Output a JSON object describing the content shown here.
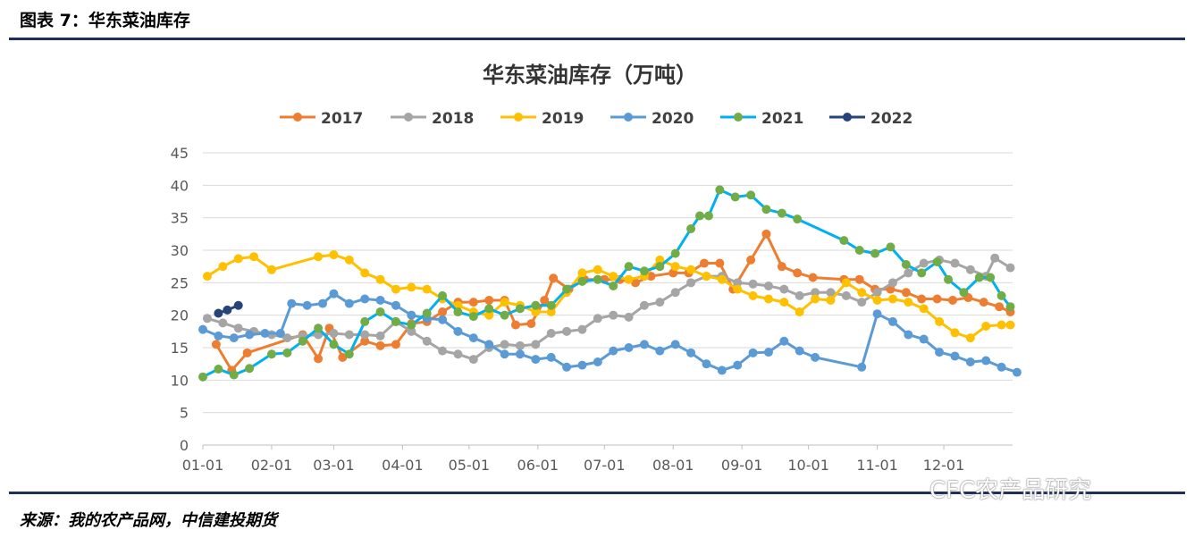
{
  "header": {
    "figure_label": "图表 7：华东菜油库存"
  },
  "footer": {
    "source": "来源：我的农产品网，中信建投期货",
    "watermark": "CFC农产品研究"
  },
  "chart_data": {
    "type": "line",
    "title": "华东菜油库存（万吨）",
    "xlabel": "",
    "ylabel": "",
    "ylim": [
      0,
      45
    ],
    "yticks": [
      0,
      5,
      10,
      15,
      20,
      25,
      30,
      35,
      40,
      45
    ],
    "xticks": [
      "01-01",
      "02-01",
      "03-01",
      "04-01",
      "05-01",
      "06-01",
      "07-01",
      "08-01",
      "09-01",
      "10-01",
      "11-01",
      "12-01"
    ],
    "grid": true,
    "legend": "top",
    "series": [
      {
        "name": "2017",
        "color": "#ED7D31",
        "marker": "#ED7D31",
        "points": [
          [
            "01-07",
            15.5
          ],
          [
            "01-14",
            11.5
          ],
          [
            "01-21",
            14.2
          ],
          [
            "02-15",
            17
          ],
          [
            "02-22",
            13.3
          ],
          [
            "02-27",
            18
          ],
          [
            "03-05",
            13.5
          ],
          [
            "03-15",
            16
          ],
          [
            "03-22",
            15.3
          ],
          [
            "03-29",
            15.5
          ],
          [
            "04-05",
            18.7
          ],
          [
            "04-12",
            19
          ],
          [
            "04-19",
            20.5
          ],
          [
            "04-26",
            22
          ],
          [
            "05-03",
            22
          ],
          [
            "05-10",
            22.3
          ],
          [
            "05-17",
            22.3
          ],
          [
            "05-22",
            18.5
          ],
          [
            "05-29",
            18.7
          ],
          [
            "06-04",
            22.3
          ],
          [
            "06-08",
            25.7
          ],
          [
            "06-15",
            24
          ],
          [
            "06-22",
            25.5
          ],
          [
            "07-01",
            25.5
          ],
          [
            "07-08",
            25.5
          ],
          [
            "07-15",
            25
          ],
          [
            "07-22",
            26
          ],
          [
            "08-01",
            26.5
          ],
          [
            "08-08",
            26.5
          ],
          [
            "08-15",
            28
          ],
          [
            "08-22",
            28
          ],
          [
            "08-28",
            24
          ],
          [
            "09-05",
            28.5
          ],
          [
            "09-12",
            32.5
          ],
          [
            "09-19",
            27.5
          ],
          [
            "09-26",
            26.5
          ],
          [
            "10-03",
            25.8
          ],
          [
            "10-17",
            25.5
          ],
          [
            "10-24",
            25.5
          ],
          [
            "10-31",
            24
          ],
          [
            "11-07",
            24
          ],
          [
            "11-14",
            23.5
          ],
          [
            "11-21",
            22.5
          ],
          [
            "11-28",
            22.5
          ],
          [
            "12-05",
            22.3
          ],
          [
            "12-12",
            22.7
          ],
          [
            "12-19",
            22
          ],
          [
            "12-26",
            21.3
          ],
          [
            "12-31",
            20.5
          ]
        ]
      },
      {
        "name": "2018",
        "color": "#A5A5A5",
        "marker": "#A5A5A5",
        "points": [
          [
            "01-03",
            19.5
          ],
          [
            "01-10",
            18.8
          ],
          [
            "01-17",
            18
          ],
          [
            "01-24",
            17.5
          ],
          [
            "02-01",
            17
          ],
          [
            "02-08",
            16.5
          ],
          [
            "02-15",
            16.8
          ],
          [
            "02-22",
            17
          ],
          [
            "03-01",
            17.2
          ],
          [
            "03-08",
            17
          ],
          [
            "03-15",
            17
          ],
          [
            "03-22",
            16.8
          ],
          [
            "03-29",
            19
          ],
          [
            "04-05",
            17.5
          ],
          [
            "04-12",
            16
          ],
          [
            "04-19",
            14.5
          ],
          [
            "04-26",
            14
          ],
          [
            "05-03",
            13.2
          ],
          [
            "05-10",
            15
          ],
          [
            "05-17",
            15.5
          ],
          [
            "05-24",
            15.3
          ],
          [
            "05-31",
            15.5
          ],
          [
            "06-07",
            17.2
          ],
          [
            "06-14",
            17.5
          ],
          [
            "06-21",
            17.8
          ],
          [
            "06-28",
            19.5
          ],
          [
            "07-05",
            20
          ],
          [
            "07-12",
            19.7
          ],
          [
            "07-19",
            21.5
          ],
          [
            "07-26",
            22
          ],
          [
            "08-02",
            23.5
          ],
          [
            "08-09",
            25
          ],
          [
            "08-16",
            26
          ],
          [
            "08-23",
            26
          ],
          [
            "08-30",
            25
          ],
          [
            "09-06",
            24.8
          ],
          [
            "09-13",
            24.5
          ],
          [
            "09-20",
            24
          ],
          [
            "09-27",
            23
          ],
          [
            "10-04",
            23.5
          ],
          [
            "10-11",
            23.5
          ],
          [
            "10-18",
            23
          ],
          [
            "10-25",
            22
          ],
          [
            "11-01",
            23.5
          ],
          [
            "11-08",
            25
          ],
          [
            "11-15",
            26.5
          ],
          [
            "11-22",
            28
          ],
          [
            "11-29",
            28.5
          ],
          [
            "12-06",
            28
          ],
          [
            "12-13",
            27
          ],
          [
            "12-20",
            26
          ],
          [
            "12-24",
            28.8
          ],
          [
            "12-31",
            27.3
          ]
        ]
      },
      {
        "name": "2019",
        "color": "#FFC000",
        "marker": "#FFC000",
        "points": [
          [
            "01-03",
            26
          ],
          [
            "01-10",
            27.5
          ],
          [
            "01-17",
            28.7
          ],
          [
            "01-24",
            29
          ],
          [
            "02-01",
            27
          ],
          [
            "02-22",
            29
          ],
          [
            "03-01",
            29.3
          ],
          [
            "03-08",
            28.5
          ],
          [
            "03-15",
            26.5
          ],
          [
            "03-22",
            25.5
          ],
          [
            "03-29",
            24
          ],
          [
            "04-05",
            24.3
          ],
          [
            "04-12",
            24
          ],
          [
            "04-19",
            22.5
          ],
          [
            "04-26",
            21.5
          ],
          [
            "05-03",
            20.5
          ],
          [
            "05-10",
            20
          ],
          [
            "05-17",
            22
          ],
          [
            "05-24",
            21.5
          ],
          [
            "05-31",
            20.5
          ],
          [
            "06-07",
            20.5
          ],
          [
            "06-14",
            23.5
          ],
          [
            "06-21",
            26.5
          ],
          [
            "06-28",
            27
          ],
          [
            "07-05",
            26
          ],
          [
            "07-12",
            25.5
          ],
          [
            "07-19",
            26
          ],
          [
            "07-26",
            28.5
          ],
          [
            "08-02",
            27.5
          ],
          [
            "08-09",
            27
          ],
          [
            "08-16",
            26
          ],
          [
            "08-23",
            25.5
          ],
          [
            "08-30",
            24
          ],
          [
            "09-06",
            23
          ],
          [
            "09-13",
            22.5
          ],
          [
            "09-20",
            22
          ],
          [
            "09-27",
            20.5
          ],
          [
            "10-04",
            22.5
          ],
          [
            "10-11",
            22.3
          ],
          [
            "10-18",
            25
          ],
          [
            "10-25",
            23.5
          ],
          [
            "11-01",
            22.3
          ],
          [
            "11-08",
            22.5
          ],
          [
            "11-15",
            22
          ],
          [
            "11-22",
            21
          ],
          [
            "11-29",
            19
          ],
          [
            "12-06",
            17.3
          ],
          [
            "12-13",
            16.5
          ],
          [
            "12-20",
            18.3
          ],
          [
            "12-27",
            18.5
          ],
          [
            "12-31",
            18.5
          ]
        ]
      },
      {
        "name": "2020",
        "color": "#5B9BD5",
        "marker": "#5B9BD5",
        "points": [
          [
            "01-01",
            17.8
          ],
          [
            "01-08",
            16.8
          ],
          [
            "01-15",
            16.5
          ],
          [
            "01-22",
            17
          ],
          [
            "01-29",
            17.2
          ],
          [
            "02-05",
            17.2
          ],
          [
            "02-10",
            21.8
          ],
          [
            "02-17",
            21.5
          ],
          [
            "02-24",
            21.8
          ],
          [
            "03-01",
            23.3
          ],
          [
            "03-08",
            21.8
          ],
          [
            "03-15",
            22.5
          ],
          [
            "03-22",
            22.3
          ],
          [
            "03-29",
            21.5
          ],
          [
            "04-05",
            20
          ],
          [
            "04-12",
            19.5
          ],
          [
            "04-19",
            19.3
          ],
          [
            "04-26",
            17.5
          ],
          [
            "05-03",
            16.5
          ],
          [
            "05-10",
            15.5
          ],
          [
            "05-17",
            14
          ],
          [
            "05-24",
            14
          ],
          [
            "05-31",
            13.2
          ],
          [
            "06-07",
            13.5
          ],
          [
            "06-14",
            12
          ],
          [
            "06-21",
            12.3
          ],
          [
            "06-28",
            12.8
          ],
          [
            "07-05",
            14.5
          ],
          [
            "07-12",
            15
          ],
          [
            "07-19",
            15.5
          ],
          [
            "07-26",
            14.5
          ],
          [
            "08-02",
            15.5
          ],
          [
            "08-09",
            14.2
          ],
          [
            "08-16",
            12.5
          ],
          [
            "08-23",
            11.5
          ],
          [
            "08-30",
            12.3
          ],
          [
            "09-06",
            14.2
          ],
          [
            "09-13",
            14.3
          ],
          [
            "09-20",
            16
          ],
          [
            "09-27",
            14.5
          ],
          [
            "10-04",
            13.5
          ],
          [
            "10-25",
            12
          ],
          [
            "11-01",
            20.2
          ],
          [
            "11-08",
            19
          ],
          [
            "11-15",
            17
          ],
          [
            "11-22",
            16.3
          ],
          [
            "11-29",
            14.3
          ],
          [
            "12-06",
            13.7
          ],
          [
            "12-13",
            12.8
          ],
          [
            "12-20",
            13
          ],
          [
            "12-27",
            12
          ],
          [
            "01-03",
            11.2
          ]
        ]
      },
      {
        "name": "2021",
        "color": "#00B0F0",
        "marker": "#70AD47",
        "points": [
          [
            "01-01",
            10.5
          ],
          [
            "01-08",
            11.7
          ],
          [
            "01-15",
            10.8
          ],
          [
            "01-22",
            11.8
          ],
          [
            "02-01",
            14
          ],
          [
            "02-08",
            14.2
          ],
          [
            "02-15",
            16
          ],
          [
            "02-22",
            18
          ],
          [
            "03-01",
            15.5
          ],
          [
            "03-08",
            14
          ],
          [
            "03-15",
            19
          ],
          [
            "03-22",
            20.5
          ],
          [
            "03-29",
            19
          ],
          [
            "04-05",
            18.5
          ],
          [
            "04-12",
            20.3
          ],
          [
            "04-19",
            23
          ],
          [
            "04-26",
            20.5
          ],
          [
            "05-03",
            19.8
          ],
          [
            "05-10",
            21
          ],
          [
            "05-17",
            20
          ],
          [
            "05-24",
            21
          ],
          [
            "05-31",
            21.5
          ],
          [
            "06-07",
            21.5
          ],
          [
            "06-14",
            24
          ],
          [
            "06-21",
            25.2
          ],
          [
            "06-28",
            25.5
          ],
          [
            "07-05",
            24.5
          ],
          [
            "07-12",
            27.5
          ],
          [
            "07-19",
            26.8
          ],
          [
            "07-26",
            27.5
          ],
          [
            "08-02",
            29.5
          ],
          [
            "08-09",
            33.3
          ],
          [
            "08-13",
            35.3
          ],
          [
            "08-17",
            35.3
          ],
          [
            "08-22",
            39.3
          ],
          [
            "08-29",
            38.2
          ],
          [
            "09-05",
            38.5
          ],
          [
            "09-12",
            36.3
          ],
          [
            "09-19",
            35.7
          ],
          [
            "09-26",
            34.8
          ],
          [
            "10-17",
            31.5
          ],
          [
            "10-24",
            30
          ],
          [
            "10-31",
            29.5
          ],
          [
            "11-07",
            30.5
          ],
          [
            "11-14",
            27.8
          ],
          [
            "11-21",
            26.5
          ],
          [
            "11-28",
            28.2
          ],
          [
            "12-03",
            25.5
          ],
          [
            "12-10",
            23.5
          ],
          [
            "12-17",
            25.8
          ],
          [
            "12-22",
            25.8
          ],
          [
            "12-27",
            23
          ],
          [
            "12-31",
            21.3
          ]
        ]
      },
      {
        "name": "2022",
        "color": "#264478",
        "marker": "#264478",
        "points": [
          [
            "01-08",
            20.3
          ],
          [
            "01-12",
            20.8
          ],
          [
            "01-17",
            21.5
          ]
        ]
      }
    ]
  }
}
